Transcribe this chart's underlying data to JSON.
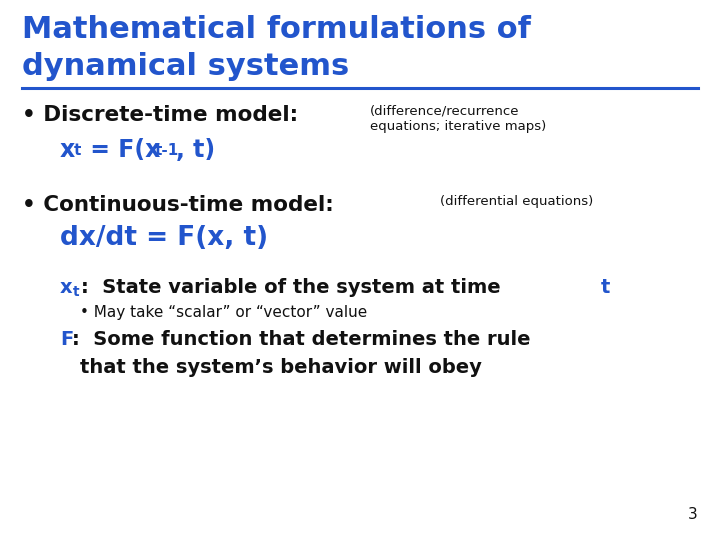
{
  "title_line1": "Mathematical formulations of",
  "title_line2": "dynamical systems",
  "title_color": "#2255CC",
  "background_color": "#FFFFFF",
  "line_color": "#2255CC",
  "body_color": "#111111",
  "blue_color": "#2255CC",
  "page_number": "3",
  "bullet1_label": "• Discrete-time model:",
  "bullet1_note1": "(difference/recurrence",
  "bullet1_note2": "equations; iterative maps)",
  "bullet2_label": "• Continuous-time model:",
  "bullet2_note": "(differential equations)",
  "state_label": "x",
  "state_sub": "t",
  "state_rest": ":  State variable of the system at time ",
  "state_t": "t",
  "bullet_sub": "• May take “scalar” or “vector” value",
  "f_label": "F",
  "f_line1": ":  Some function that determines the rule",
  "f_line2": "that the system’s behavior will obey"
}
